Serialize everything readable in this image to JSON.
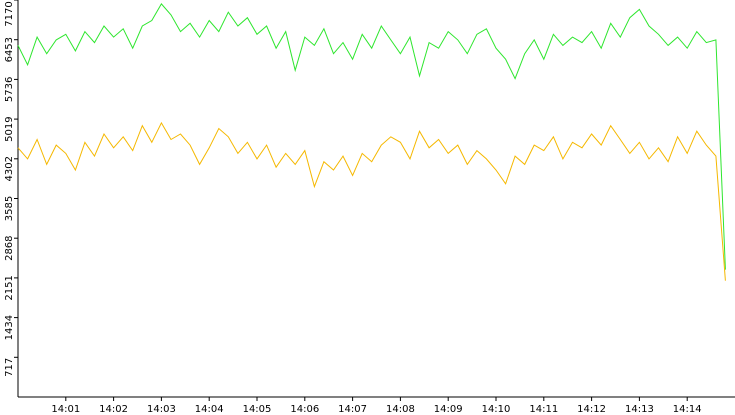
{
  "chart_data": {
    "type": "line",
    "categories": [
      null,
      null,
      null,
      null,
      null,
      "14:01",
      null,
      null,
      null,
      null,
      "14:02",
      null,
      null,
      null,
      null,
      "14:03",
      null,
      null,
      null,
      null,
      "14:04",
      null,
      null,
      null,
      null,
      "14:05",
      null,
      null,
      null,
      null,
      "14:06",
      null,
      null,
      null,
      null,
      "14:07",
      null,
      null,
      null,
      null,
      "14:08",
      null,
      null,
      null,
      null,
      "14:09",
      null,
      null,
      null,
      null,
      "14:10",
      null,
      null,
      null,
      null,
      "14:11",
      null,
      null,
      null,
      null,
      "14:12",
      null,
      null,
      null,
      null,
      "14:13",
      null,
      null,
      null,
      null,
      "14:14",
      null,
      null,
      null,
      null
    ],
    "series": [
      {
        "color": "#2ee62e",
        "values": [
          6350,
          6000,
          6500,
          6200,
          6450,
          6550,
          6250,
          6600,
          6400,
          6700,
          6500,
          6650,
          6300,
          6700,
          6800,
          7100,
          6900,
          6600,
          6750,
          6500,
          6800,
          6600,
          6950,
          6700,
          6850,
          6550,
          6700,
          6300,
          6600,
          5900,
          6500,
          6350,
          6650,
          6200,
          6400,
          6100,
          6550,
          6300,
          6700,
          6450,
          6200,
          6500,
          5800,
          6400,
          6300,
          6600,
          6450,
          6200,
          6550,
          6650,
          6300,
          6100,
          5750,
          6200,
          6450,
          6100,
          6550,
          6350,
          6500,
          6400,
          6600,
          6300,
          6750,
          6500,
          6850,
          7000,
          6700,
          6550,
          6350,
          6500,
          6300,
          6600,
          6400,
          6450,
          2300
        ]
      },
      {
        "color": "#f5b800",
        "values": [
          4500,
          4300,
          4650,
          4200,
          4550,
          4400,
          4100,
          4600,
          4350,
          4750,
          4500,
          4700,
          4450,
          4900,
          4600,
          4950,
          4650,
          4750,
          4550,
          4200,
          4500,
          4850,
          4700,
          4400,
          4600,
          4300,
          4550,
          4150,
          4400,
          4200,
          4450,
          3800,
          4250,
          4100,
          4350,
          4000,
          4400,
          4250,
          4550,
          4700,
          4600,
          4300,
          4800,
          4500,
          4650,
          4400,
          4550,
          4200,
          4450,
          4300,
          4100,
          3850,
          4350,
          4200,
          4550,
          4450,
          4700,
          4300,
          4600,
          4500,
          4750,
          4550,
          4900,
          4650,
          4400,
          4600,
          4300,
          4500,
          4250,
          4700,
          4400,
          4800,
          4550,
          4350,
          2100
        ]
      }
    ],
    "ylim": [
      0,
      7170
    ],
    "yticks": [
      717,
      1434,
      2151,
      2868,
      3585,
      4302,
      5019,
      5736,
      6453,
      7170
    ]
  }
}
